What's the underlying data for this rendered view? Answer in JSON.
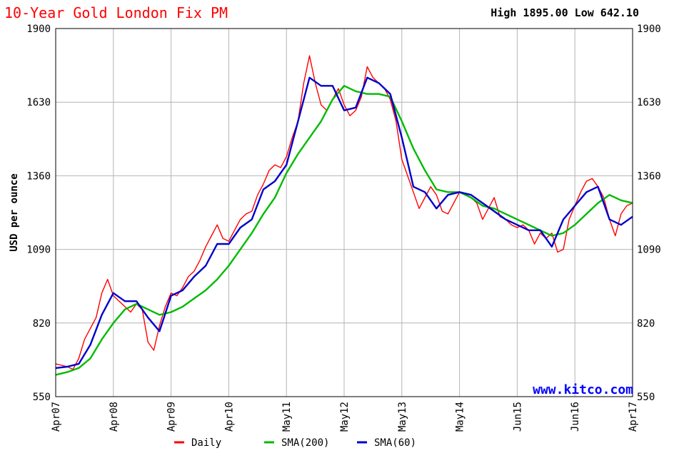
{
  "chart_data": {
    "type": "line",
    "title": "10-Year Gold London Fix PM",
    "high_low_text": "High 1895.00 Low 642.10",
    "ylabel": "USD per ounce",
    "watermark": "www.kitco.com",
    "ylim": [
      550,
      1900
    ],
    "y_ticks": [
      550,
      820,
      1090,
      1360,
      1630,
      1900
    ],
    "x_ticks": [
      "Apr07",
      "Apr08",
      "Apr09",
      "Apr10",
      "May11",
      "May12",
      "May13",
      "May14",
      "Jun15",
      "Jun16",
      "Apr17"
    ],
    "x_tick_pos": [
      0,
      1,
      2,
      3,
      4,
      5,
      6,
      7,
      8,
      9,
      10
    ],
    "xlim": [
      0,
      10
    ],
    "grid": true,
    "legend_position": "bottom",
    "colors": {
      "daily": "#ff0000",
      "sma200": "#00bb00",
      "sma60": "#0000cc",
      "title": "#ff0000",
      "watermark": "#0000ff",
      "grid": "#b4b4b4"
    },
    "series": [
      {
        "name": "Daily",
        "key": "daily",
        "x": [
          0,
          0.1,
          0.2,
          0.3,
          0.4,
          0.5,
          0.6,
          0.7,
          0.8,
          0.9,
          1.0,
          1.1,
          1.2,
          1.3,
          1.4,
          1.5,
          1.6,
          1.7,
          1.8,
          1.9,
          2.0,
          2.1,
          2.2,
          2.3,
          2.4,
          2.5,
          2.6,
          2.7,
          2.8,
          2.9,
          3.0,
          3.1,
          3.2,
          3.3,
          3.4,
          3.5,
          3.6,
          3.7,
          3.8,
          3.9,
          4.0,
          4.1,
          4.2,
          4.3,
          4.4,
          4.5,
          4.6,
          4.7,
          4.8,
          4.9,
          5.0,
          5.1,
          5.2,
          5.3,
          5.4,
          5.5,
          5.6,
          5.7,
          5.8,
          5.9,
          6.0,
          6.1,
          6.2,
          6.3,
          6.4,
          6.5,
          6.6,
          6.7,
          6.8,
          6.9,
          7.0,
          7.1,
          7.2,
          7.3,
          7.4,
          7.5,
          7.6,
          7.7,
          7.8,
          7.9,
          8.0,
          8.1,
          8.2,
          8.3,
          8.4,
          8.5,
          8.6,
          8.7,
          8.8,
          8.9,
          9.0,
          9.1,
          9.2,
          9.3,
          9.4,
          9.5,
          9.6,
          9.7,
          9.8,
          9.9,
          10.0
        ],
        "y": [
          670,
          665,
          660,
          650,
          690,
          760,
          800,
          840,
          930,
          980,
          920,
          900,
          880,
          860,
          890,
          870,
          750,
          720,
          810,
          880,
          930,
          920,
          950,
          990,
          1010,
          1050,
          1100,
          1140,
          1180,
          1130,
          1120,
          1160,
          1200,
          1220,
          1230,
          1290,
          1330,
          1380,
          1400,
          1390,
          1430,
          1500,
          1560,
          1700,
          1800,
          1700,
          1620,
          1600,
          1640,
          1680,
          1620,
          1580,
          1600,
          1650,
          1760,
          1720,
          1700,
          1680,
          1640,
          1560,
          1420,
          1360,
          1300,
          1240,
          1280,
          1320,
          1290,
          1230,
          1220,
          1260,
          1300,
          1290,
          1280,
          1260,
          1200,
          1240,
          1280,
          1210,
          1200,
          1180,
          1170,
          1180,
          1160,
          1110,
          1150,
          1130,
          1150,
          1080,
          1090,
          1200,
          1250,
          1300,
          1340,
          1350,
          1320,
          1280,
          1200,
          1140,
          1220,
          1250,
          1260
        ]
      },
      {
        "name": "SMA(200)",
        "key": "sma200",
        "x": [
          0,
          0.2,
          0.4,
          0.6,
          0.8,
          1.0,
          1.2,
          1.4,
          1.6,
          1.8,
          2.0,
          2.2,
          2.4,
          2.6,
          2.8,
          3.0,
          3.2,
          3.4,
          3.6,
          3.8,
          4.0,
          4.2,
          4.4,
          4.6,
          4.8,
          5.0,
          5.2,
          5.4,
          5.6,
          5.8,
          6.0,
          6.2,
          6.4,
          6.6,
          6.8,
          7.0,
          7.2,
          7.4,
          7.6,
          7.8,
          8.0,
          8.2,
          8.4,
          8.6,
          8.8,
          9.0,
          9.2,
          9.4,
          9.6,
          9.8,
          10.0
        ],
        "y": [
          630,
          640,
          655,
          690,
          760,
          820,
          870,
          890,
          870,
          850,
          860,
          880,
          910,
          940,
          980,
          1030,
          1090,
          1150,
          1220,
          1280,
          1370,
          1440,
          1500,
          1560,
          1640,
          1690,
          1670,
          1660,
          1660,
          1650,
          1560,
          1460,
          1380,
          1310,
          1300,
          1300,
          1280,
          1250,
          1240,
          1220,
          1200,
          1180,
          1160,
          1140,
          1150,
          1180,
          1220,
          1260,
          1290,
          1270,
          1260
        ]
      },
      {
        "name": "SMA(60)",
        "key": "sma60",
        "x": [
          0,
          0.2,
          0.4,
          0.6,
          0.8,
          1.0,
          1.2,
          1.4,
          1.6,
          1.8,
          2.0,
          2.2,
          2.4,
          2.6,
          2.8,
          3.0,
          3.2,
          3.4,
          3.6,
          3.8,
          4.0,
          4.2,
          4.4,
          4.6,
          4.8,
          5.0,
          5.2,
          5.4,
          5.6,
          5.8,
          6.0,
          6.2,
          6.4,
          6.6,
          6.8,
          7.0,
          7.2,
          7.4,
          7.6,
          7.8,
          8.0,
          8.2,
          8.4,
          8.6,
          8.8,
          9.0,
          9.2,
          9.4,
          9.6,
          9.8,
          10.0
        ],
        "y": [
          655,
          660,
          670,
          740,
          850,
          930,
          900,
          900,
          840,
          790,
          920,
          940,
          990,
          1030,
          1110,
          1110,
          1170,
          1200,
          1310,
          1340,
          1400,
          1560,
          1720,
          1690,
          1690,
          1600,
          1610,
          1720,
          1700,
          1660,
          1500,
          1320,
          1300,
          1240,
          1290,
          1300,
          1290,
          1260,
          1230,
          1200,
          1180,
          1160,
          1160,
          1100,
          1200,
          1250,
          1300,
          1320,
          1200,
          1180,
          1210
        ]
      }
    ]
  }
}
